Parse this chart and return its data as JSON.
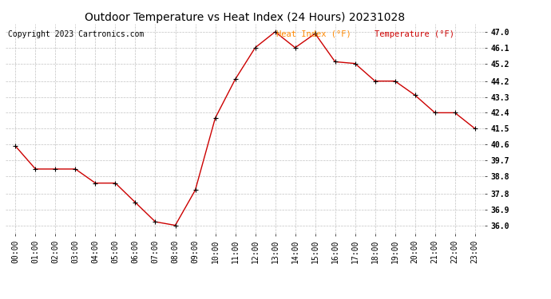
{
  "title": "Outdoor Temperature vs Heat Index (24 Hours) 20231028",
  "copyright": "Copyright 2023 Cartronics.com",
  "legend_heat_index": "Heat Index (°F)",
  "legend_temperature": "Temperature (°F)",
  "hours": [
    "00:00",
    "01:00",
    "02:00",
    "03:00",
    "04:00",
    "05:00",
    "06:00",
    "07:00",
    "08:00",
    "09:00",
    "10:00",
    "11:00",
    "12:00",
    "13:00",
    "14:00",
    "15:00",
    "16:00",
    "17:00",
    "18:00",
    "19:00",
    "20:00",
    "21:00",
    "22:00",
    "23:00"
  ],
  "temperature": [
    40.5,
    39.2,
    39.2,
    39.2,
    38.4,
    38.4,
    37.3,
    36.2,
    36.0,
    38.0,
    42.1,
    44.3,
    46.1,
    47.0,
    46.1,
    46.9,
    45.3,
    45.2,
    44.2,
    44.2,
    43.4,
    42.4,
    42.4,
    41.5
  ],
  "ylim_min": 35.55,
  "ylim_max": 47.45,
  "yticks": [
    36.0,
    36.9,
    37.8,
    38.8,
    39.7,
    40.6,
    41.5,
    42.4,
    43.3,
    44.2,
    45.2,
    46.1,
    47.0
  ],
  "line_color": "#cc0000",
  "marker_color": "#000000",
  "title_color": "#000000",
  "copyright_color": "#000000",
  "legend_heat_color": "#ff8800",
  "legend_temp_color": "#cc0000",
  "bg_color": "#ffffff",
  "grid_color": "#bbbbbb",
  "title_fontsize": 10,
  "copyright_fontsize": 7,
  "legend_fontsize": 7.5,
  "tick_fontsize": 7
}
